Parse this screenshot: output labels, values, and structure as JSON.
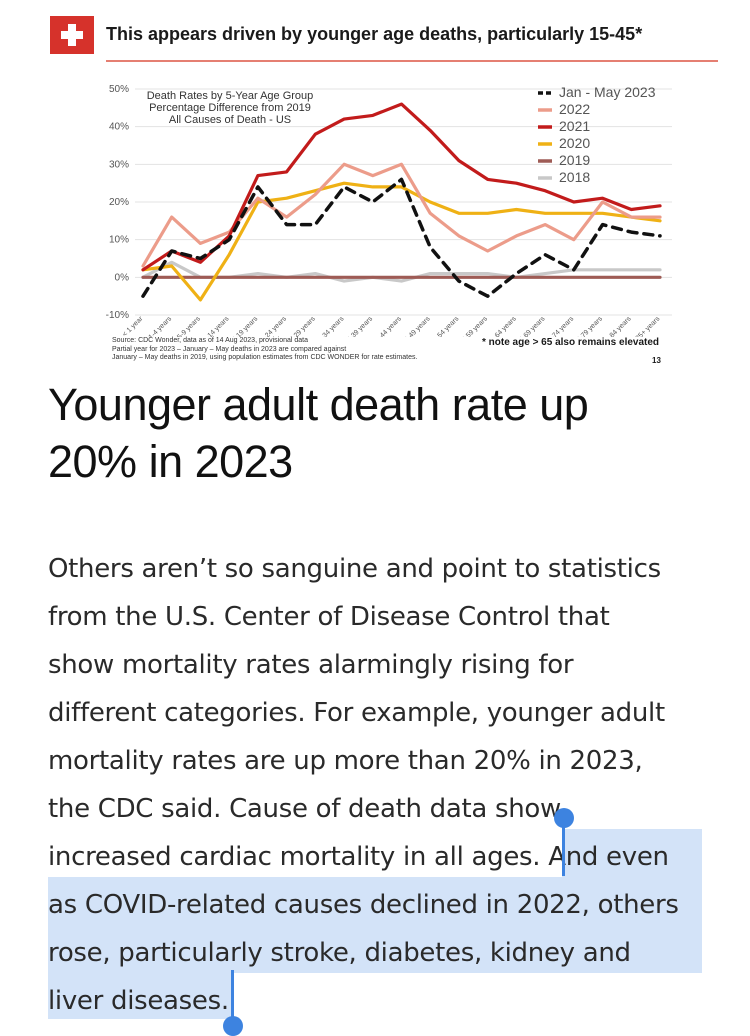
{
  "slide": {
    "title": "This appears driven by younger age deaths, particularly 15-45*",
    "footnote_lines": [
      "Source: CDC Wonder, data as of 14 Aug 2023, provisional data",
      "Partial year for 2023 – January – May deaths in 2023 are compared against",
      "January – May deaths in 2019, using population estimates from CDC WONDER for rate estimates."
    ],
    "note": "* note age > 65 also remains elevated",
    "page_number": "13"
  },
  "chart_data": {
    "type": "line",
    "title_lines": [
      "Death Rates by 5-Year Age Group",
      "Percentage Difference from 2019",
      "All Causes of Death - US"
    ],
    "xlabel": "",
    "ylabel": "",
    "ylim": [
      -10,
      50
    ],
    "yticks": [
      "-10%",
      "0%",
      "10%",
      "20%",
      "30%",
      "40%",
      "50%"
    ],
    "ytick_values": [
      -10,
      0,
      10,
      20,
      30,
      40,
      50
    ],
    "categories": [
      "< 1 year",
      "1-4 years",
      "5-9 years",
      "10-14 years",
      "15-19 years",
      "20-24 years",
      "25-29 years",
      "30-34 years",
      "35-39 years",
      "40-44 years",
      "45-49 years",
      "50-54 years",
      "55-59 years",
      "60-64 years",
      "65-69 years",
      "70-74 years",
      "75-79 years",
      "80-84 years",
      "85+ years"
    ],
    "legend_position": "top-right",
    "grid": true,
    "series": [
      {
        "name": "Jan - May 2023",
        "color": "#111111",
        "dashed": true,
        "values": [
          -5,
          7,
          5,
          10,
          24,
          14,
          14,
          24,
          20,
          26,
          8,
          -1,
          -5,
          1,
          6,
          2,
          14,
          12,
          11
        ]
      },
      {
        "name": "2022",
        "color": "#ec9c8a",
        "dashed": false,
        "values": [
          3,
          16,
          9,
          12,
          21,
          16,
          22,
          30,
          27,
          30,
          17,
          11,
          7,
          11,
          14,
          10,
          20,
          16,
          16
        ]
      },
      {
        "name": "2021",
        "color": "#c21b1b",
        "dashed": false,
        "values": [
          2,
          7,
          4,
          11,
          27,
          28,
          38,
          42,
          43,
          46,
          39,
          31,
          26,
          25,
          23,
          20,
          21,
          18,
          19
        ]
      },
      {
        "name": "2020",
        "color": "#efb115",
        "dashed": false,
        "values": [
          2,
          3,
          -6,
          6,
          20,
          21,
          23,
          25,
          24,
          24,
          20,
          17,
          17,
          18,
          17,
          17,
          17,
          16,
          15
        ]
      },
      {
        "name": "2019",
        "color": "#9e5b55",
        "dashed": false,
        "values": [
          0,
          0,
          0,
          0,
          0,
          0,
          0,
          0,
          0,
          0,
          0,
          0,
          0,
          0,
          0,
          0,
          0,
          0,
          0
        ]
      },
      {
        "name": "2018",
        "color": "#c8c8c8",
        "dashed": false,
        "values": [
          0,
          4,
          0,
          0,
          1,
          0,
          1,
          -1,
          0,
          -1,
          1,
          1,
          1,
          0,
          1,
          2,
          2,
          2,
          2
        ]
      }
    ]
  },
  "article": {
    "headline_lines": [
      "Younger adult death rate up",
      "20% in 2023"
    ],
    "body": {
      "l1": "Others aren’t so sanguine and point to statistics",
      "l2": "from the U.S. Center of Disease Control that",
      "l3": "show mortality rates alarmingly rising for",
      "l4": "different categories. For example, younger adult",
      "l5": "mortality rates are up more than 20% in 2023,",
      "l6": "the CDC said. Cause of death data show",
      "l7a": "increased cardiac mortality in all ages. ",
      "l7b": "And even",
      "l8": "as COVID-related causes declined in 2022, others",
      "l9": "rose, particularly stroke, diabetes, kidney and",
      "l10": "liver diseases."
    }
  }
}
